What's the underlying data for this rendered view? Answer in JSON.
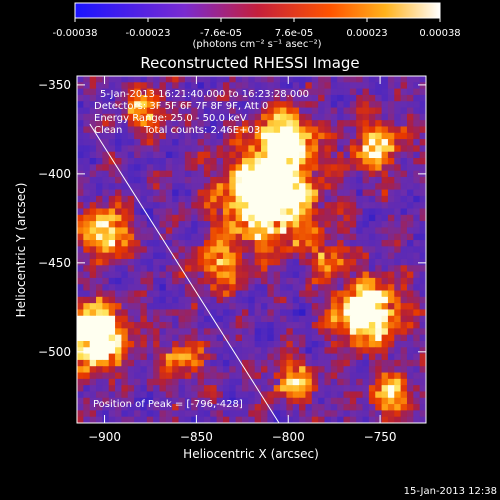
{
  "chart_data": {
    "type": "heatmap",
    "title": "Reconstructed RHESSI Image",
    "xlabel": "Heliocentric X (arcsec)",
    "ylabel": "Heliocentric Y (arcsec)",
    "xlim": [
      -915,
      -725
    ],
    "ylim": [
      -540,
      -345
    ],
    "x_ticks": [
      -900,
      -850,
      -800,
      -750
    ],
    "y_ticks": [
      -350,
      -400,
      -450,
      -500
    ],
    "colorbar": {
      "min": -0.00038,
      "max": 0.00038,
      "ticks": [
        "-0.00038",
        "-0.00023",
        "-7.6e-05",
        "7.6e-05",
        "0.00023",
        "0.00038"
      ],
      "units": "(photons cm⁻² s⁻¹ asec⁻²)",
      "colors": [
        "#2a1fff",
        "#8a2bd6",
        "#c81f3a",
        "#ff5a00",
        "#ffc020",
        "#ffffff"
      ]
    },
    "annotations": {
      "time_range": "5-Jan-2013 16:21:40.000 to 16:23:28.000",
      "detectors": "Detectors: 3F 5F 6F 7F 8F 9F, Att 0",
      "energy": "Energy Range: 25.0 - 50.0 keV",
      "method": "Clean",
      "counts": "Total counts: 2.46E+03",
      "peak": "Position of Peak = [-796,-428]"
    },
    "peak": [
      -796,
      -428
    ],
    "limb_line": [
      [
        -908,
        -372
      ],
      [
        -805,
        -540
      ]
    ]
  },
  "footer": {
    "timestamp": "15-Jan-2013 12:38"
  }
}
